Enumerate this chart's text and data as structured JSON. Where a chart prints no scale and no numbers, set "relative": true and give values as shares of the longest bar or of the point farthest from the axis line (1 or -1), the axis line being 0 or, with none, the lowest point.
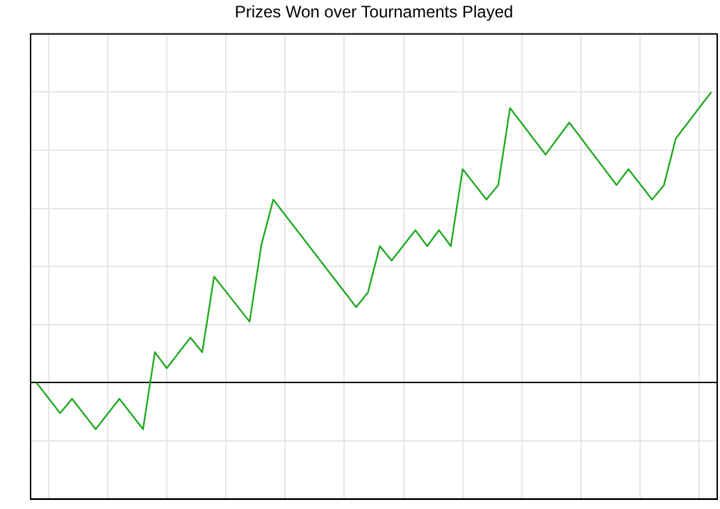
{
  "chart_data": {
    "type": "line",
    "title": "Prizes Won over Tournaments Played",
    "relative": true,
    "grid": true,
    "legend": false,
    "marker": "none",
    "line_style": "solid",
    "categories": [
      null,
      null,
      null,
      null,
      null,
      null,
      null,
      null,
      null,
      null,
      null,
      null,
      null,
      null,
      null,
      null,
      null,
      null,
      null,
      null,
      null,
      null,
      null,
      null,
      null,
      null,
      null,
      null,
      null,
      null,
      null,
      null,
      null,
      null,
      null,
      null,
      null,
      null,
      null,
      null,
      null,
      null,
      null,
      null,
      null,
      null,
      null,
      null,
      null,
      null,
      null,
      null,
      null,
      null,
      null,
      null,
      null,
      null
    ],
    "series": [
      {
        "color": "#22aa22",
        "values": [
          0,
          null,
          -0.105,
          -0.055,
          null,
          -0.16,
          null,
          -0.055,
          null,
          -0.16,
          0.105,
          0.05,
          null,
          0.155,
          0.105,
          0.365,
          null,
          null,
          0.21,
          0.475,
          0.63,
          null,
          null,
          null,
          null,
          null,
          null,
          0.26,
          0.311,
          0.47,
          0.42,
          null,
          0.525,
          0.47,
          0.525,
          0.47,
          0.735,
          null,
          0.63,
          0.68,
          0.945,
          null,
          null,
          0.785,
          null,
          0.895,
          null,
          null,
          null,
          0.68,
          0.735,
          null,
          0.63,
          0.68,
          0.84,
          null,
          null,
          1
        ]
      }
    ]
  }
}
